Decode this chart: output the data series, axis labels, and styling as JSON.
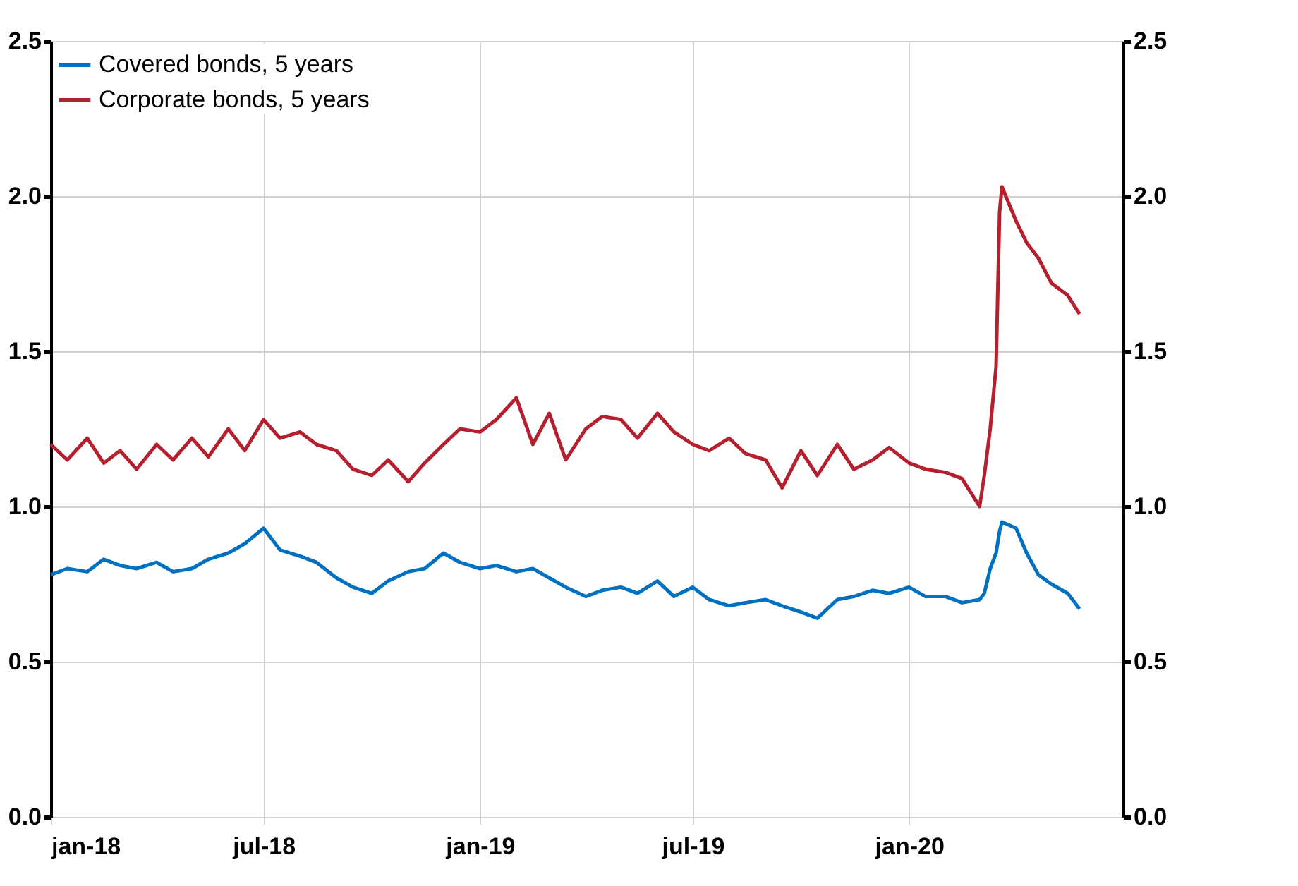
{
  "chart_data": {
    "type": "line",
    "x": [
      "2018-01-01",
      "2018-01-15",
      "2018-02-01",
      "2018-02-15",
      "2018-03-01",
      "2018-03-15",
      "2018-04-01",
      "2018-04-15",
      "2018-05-01",
      "2018-05-15",
      "2018-06-01",
      "2018-06-15",
      "2018-07-01",
      "2018-07-15",
      "2018-08-01",
      "2018-08-15",
      "2018-09-01",
      "2018-09-15",
      "2018-10-01",
      "2018-10-15",
      "2018-11-01",
      "2018-11-15",
      "2018-12-01",
      "2018-12-15",
      "2019-01-01",
      "2019-01-15",
      "2019-02-01",
      "2019-02-15",
      "2019-03-01",
      "2019-03-15",
      "2019-04-01",
      "2019-04-15",
      "2019-05-01",
      "2019-05-15",
      "2019-06-01",
      "2019-06-15",
      "2019-07-01",
      "2019-07-15",
      "2019-08-01",
      "2019-08-15",
      "2019-09-01",
      "2019-09-15",
      "2019-10-01",
      "2019-10-15",
      "2019-11-01",
      "2019-11-15",
      "2019-12-01",
      "2019-12-15",
      "2020-01-01",
      "2020-01-15",
      "2020-02-01",
      "2020-02-15",
      "2020-03-01",
      "2020-03-05",
      "2020-03-10",
      "2020-03-15",
      "2020-03-18",
      "2020-03-20",
      "2020-04-01",
      "2020-04-10",
      "2020-04-20",
      "2020-05-01",
      "2020-05-15",
      "2020-05-25"
    ],
    "series": [
      {
        "name": "Covered bonds, 5 years",
        "color": "#0070c0",
        "values": [
          0.78,
          0.8,
          0.79,
          0.83,
          0.81,
          0.8,
          0.82,
          0.79,
          0.8,
          0.83,
          0.85,
          0.88,
          0.93,
          0.86,
          0.84,
          0.82,
          0.77,
          0.74,
          0.72,
          0.76,
          0.79,
          0.8,
          0.85,
          0.82,
          0.8,
          0.81,
          0.79,
          0.8,
          0.77,
          0.74,
          0.71,
          0.73,
          0.74,
          0.72,
          0.76,
          0.71,
          0.74,
          0.7,
          0.68,
          0.69,
          0.7,
          0.68,
          0.66,
          0.64,
          0.7,
          0.71,
          0.73,
          0.72,
          0.74,
          0.71,
          0.71,
          0.69,
          0.7,
          0.72,
          0.8,
          0.85,
          0.92,
          0.95,
          0.93,
          0.85,
          0.78,
          0.75,
          0.72,
          0.67
        ]
      },
      {
        "name": "Corporate bonds, 5 years",
        "color": "#b51f2e",
        "values": [
          1.2,
          1.15,
          1.22,
          1.14,
          1.18,
          1.12,
          1.2,
          1.15,
          1.22,
          1.16,
          1.25,
          1.18,
          1.28,
          1.22,
          1.24,
          1.2,
          1.18,
          1.12,
          1.1,
          1.15,
          1.08,
          1.14,
          1.2,
          1.25,
          1.24,
          1.28,
          1.35,
          1.2,
          1.3,
          1.15,
          1.25,
          1.29,
          1.28,
          1.22,
          1.3,
          1.24,
          1.2,
          1.18,
          1.22,
          1.17,
          1.15,
          1.06,
          1.18,
          1.1,
          1.2,
          1.12,
          1.15,
          1.19,
          1.14,
          1.12,
          1.11,
          1.09,
          1.0,
          1.1,
          1.25,
          1.45,
          1.95,
          2.03,
          1.92,
          1.85,
          1.8,
          1.72,
          1.68,
          1.62
        ]
      }
    ],
    "xlim": [
      "2018-01-01",
      "2020-07-01"
    ],
    "xticks": [
      {
        "value": "2018-01-01",
        "label": "jan-18"
      },
      {
        "value": "2018-07-01",
        "label": "jul-18"
      },
      {
        "value": "2019-01-01",
        "label": "jan-19"
      },
      {
        "value": "2019-07-01",
        "label": "jul-19"
      },
      {
        "value": "2020-01-01",
        "label": "jan-20"
      }
    ],
    "ylim": [
      0,
      2.5
    ],
    "yticks": [
      {
        "value": 0,
        "label": "0.0"
      },
      0.5,
      {
        "value": 1,
        "label": "1.0"
      },
      1.5,
      {
        "value": 2,
        "label": "2.0"
      },
      2.5
    ],
    "y2lim": [
      0,
      2.5
    ],
    "y2ticks": [
      {
        "value": 0,
        "label": "0.0"
      },
      0.5,
      {
        "value": 1,
        "label": "1.0"
      },
      1.5,
      {
        "value": 2,
        "label": "2.0"
      },
      2.5
    ],
    "grid": true,
    "legend": "top left",
    "line_style": "solid",
    "marker": "none"
  }
}
